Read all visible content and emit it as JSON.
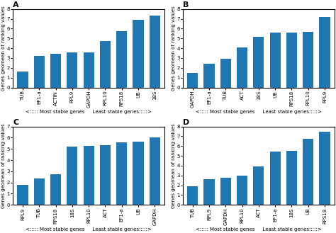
{
  "chart_data": [
    {
      "type": "bar",
      "title": "A",
      "xlabel": "<::::: Most stable genes     Least stable genes:::::>",
      "ylabel": "Genes geomean of ranking values",
      "categories": [
        "TUB",
        "EF1-a",
        "ACTIN",
        "RPL9",
        "GAPDH",
        "RPL10",
        "RPS18",
        "UB",
        "18S"
      ],
      "values": [
        1.6,
        3.25,
        3.45,
        3.55,
        3.55,
        4.75,
        5.75,
        6.9,
        7.35
      ],
      "ylim": [
        0,
        8
      ],
      "yticks": [
        0,
        1,
        2,
        3,
        4,
        5,
        6,
        7,
        8
      ]
    },
    {
      "type": "bar",
      "title": "B",
      "xlabel": "<::::: Most stable genes     Least stable genes:::::>",
      "ylabel": "Genes geomean of ranking values",
      "categories": [
        "GAPDH",
        "EF1-a",
        "TUB",
        "ACT",
        "18S",
        "UB",
        "RPS18",
        "RPL10",
        "RPL9"
      ],
      "values": [
        1.5,
        2.45,
        2.9,
        4.1,
        5.2,
        5.6,
        5.62,
        5.68,
        7.2
      ],
      "ylim": [
        0,
        8
      ],
      "yticks": [
        0,
        1,
        2,
        3,
        4,
        5,
        6,
        7,
        8
      ]
    },
    {
      "type": "bar",
      "title": "C",
      "xlabel": "<::::: Most stable genes     Least stable genes:::::>",
      "ylabel": "Genes geomean of ranking values",
      "categories": [
        "RPL9",
        "TUB",
        "RPS18",
        "18S",
        "RPL10",
        "ACT",
        "EF1-a",
        "UB",
        "GAPDH"
      ],
      "values": [
        1.8,
        2.38,
        2.72,
        5.22,
        5.27,
        5.32,
        5.57,
        5.67,
        6.0
      ],
      "ylim": [
        0,
        7
      ],
      "yticks": [
        0,
        1,
        2,
        3,
        4,
        5,
        6,
        7
      ]
    },
    {
      "type": "bar",
      "title": "D",
      "xlabel": "<::::: Most stable genes     Least stable genes:::::>",
      "ylabel": "Genes geomean of ranking values",
      "categories": [
        "TUB",
        "RPL9",
        "GAPDH",
        "RPL10",
        "ACT",
        "EF1-a",
        "18S",
        "UB",
        "RPS18"
      ],
      "values": [
        1.9,
        2.6,
        2.75,
        3.0,
        3.95,
        5.45,
        5.5,
        6.75,
        7.45
      ],
      "ylim": [
        0,
        8
      ],
      "yticks": [
        0,
        1,
        2,
        3,
        4,
        5,
        6,
        7,
        8
      ]
    }
  ]
}
